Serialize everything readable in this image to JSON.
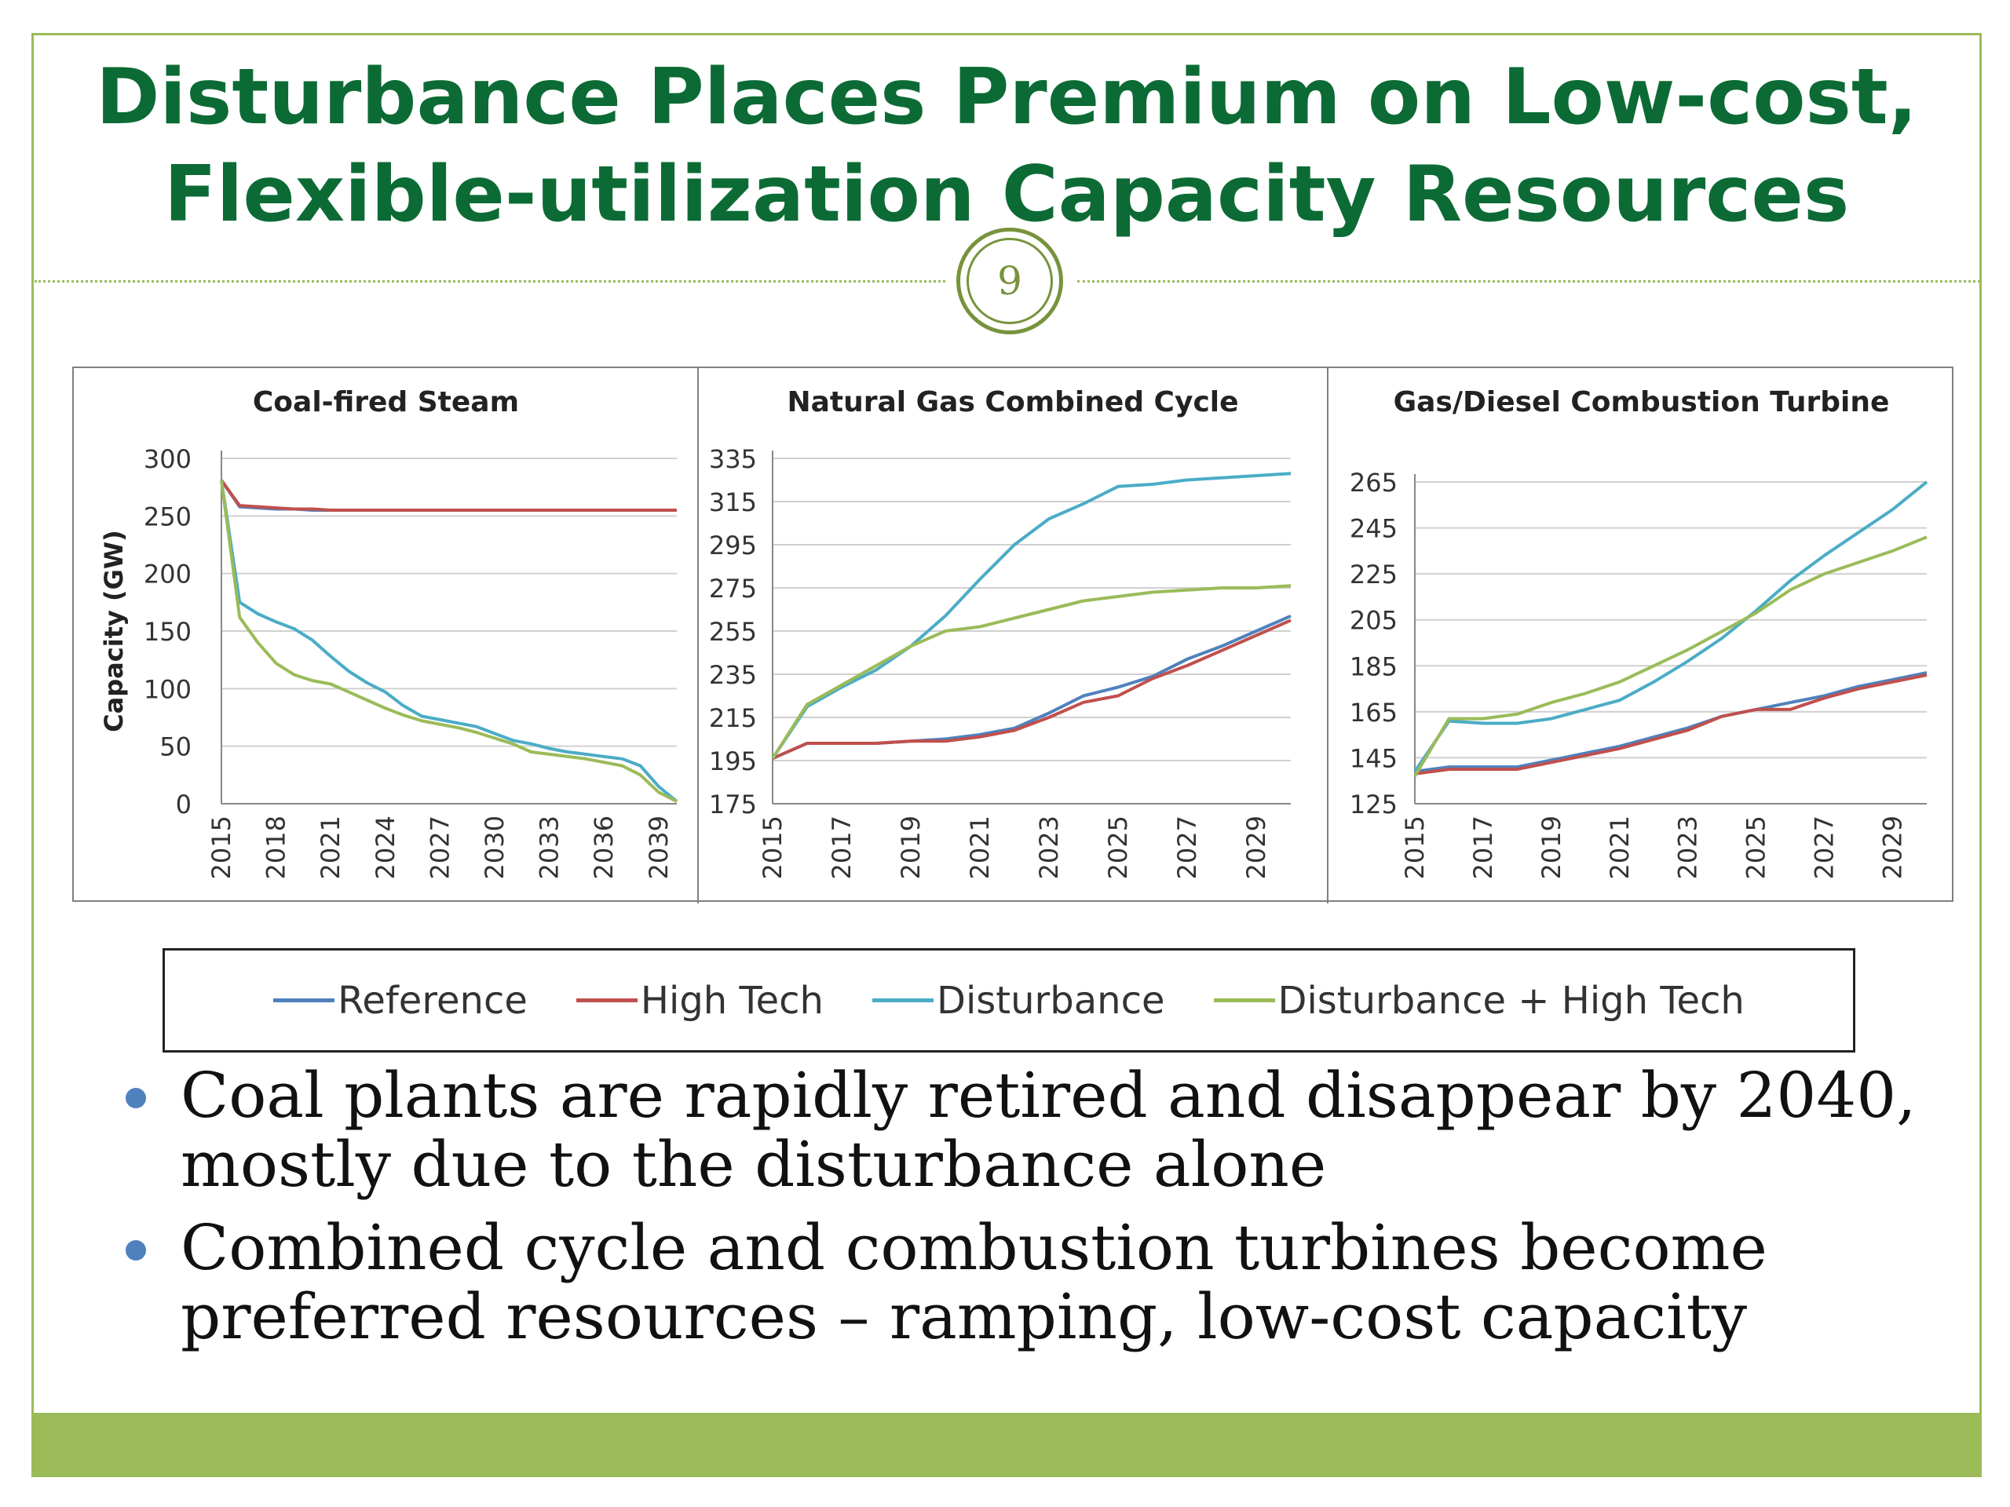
{
  "slide": {
    "title_line1": "Disturbance Places Premium on Low-cost,",
    "title_line2": "Flexible-utilization Capacity Resources",
    "page_number": "9",
    "colors": {
      "title": "#0c6b35",
      "accent": "#9bbb59",
      "badge": "#77933c",
      "bullet": "#4f81bd"
    }
  },
  "legend": [
    {
      "name": "Reference",
      "color": "#4f81bd"
    },
    {
      "name": "High Tech",
      "color": "#c0504d"
    },
    {
      "name": "Disturbance",
      "color": "#4bacc6"
    },
    {
      "name": "Disturbance + High Tech",
      "color": "#9bbb59"
    }
  ],
  "bullets": [
    "Coal plants are rapidly retired and disappear by 2040, mostly due to the disturbance alone",
    "Combined cycle and combustion turbines become preferred resources – ramping, low-cost capacity"
  ],
  "chart_data": [
    {
      "type": "line",
      "title": "Coal-fired Steam",
      "ylabel": "Capacity (GW)",
      "xlabel": "",
      "ylim": [
        0,
        300
      ],
      "yticks": [
        0,
        50,
        100,
        150,
        200,
        250,
        300
      ],
      "x": [
        2015,
        2016,
        2017,
        2018,
        2019,
        2020,
        2021,
        2022,
        2023,
        2024,
        2025,
        2026,
        2027,
        2028,
        2029,
        2030,
        2031,
        2032,
        2033,
        2034,
        2035,
        2036,
        2037,
        2038,
        2039,
        2040
      ],
      "xtick_labels": [
        "2015",
        "2018",
        "2021",
        "2024",
        "2027",
        "2030",
        "2033",
        "2036",
        "2039"
      ],
      "grid": true,
      "series": [
        {
          "name": "Reference",
          "values": [
            281,
            258,
            257,
            256,
            256,
            255,
            255,
            255,
            255,
            255,
            255,
            255,
            255,
            255,
            255,
            255,
            255,
            255,
            255,
            255,
            255,
            255,
            255,
            255,
            255,
            255
          ]
        },
        {
          "name": "High Tech",
          "values": [
            281,
            259,
            258,
            257,
            256,
            256,
            255,
            255,
            255,
            255,
            255,
            255,
            255,
            255,
            255,
            255,
            255,
            255,
            255,
            255,
            255,
            255,
            255,
            255,
            255,
            255
          ]
        },
        {
          "name": "Disturbance",
          "values": [
            281,
            175,
            165,
            158,
            152,
            142,
            128,
            115,
            105,
            97,
            85,
            76,
            73,
            70,
            67,
            61,
            55,
            52,
            48,
            45,
            43,
            41,
            39,
            33,
            15,
            2
          ]
        },
        {
          "name": "Disturbance + High Tech",
          "values": [
            281,
            162,
            140,
            122,
            112,
            107,
            104,
            97,
            90,
            83,
            77,
            72,
            69,
            66,
            62,
            57,
            52,
            45,
            43,
            41,
            39,
            36,
            33,
            25,
            10,
            2
          ]
        }
      ]
    },
    {
      "type": "line",
      "title": "Natural Gas Combined Cycle",
      "xlabel": "",
      "ylabel": "",
      "ylim": [
        175,
        335
      ],
      "yticks": [
        175,
        195,
        215,
        235,
        255,
        275,
        295,
        315,
        335
      ],
      "x": [
        2015,
        2016,
        2017,
        2018,
        2019,
        2020,
        2021,
        2022,
        2023,
        2024,
        2025,
        2026,
        2027,
        2028,
        2029,
        2030
      ],
      "xtick_labels": [
        "2015",
        "2017",
        "2019",
        "2021",
        "2023",
        "2025",
        "2027",
        "2029"
      ],
      "grid": true,
      "series": [
        {
          "name": "Reference",
          "values": [
            196,
            203,
            203,
            203,
            204,
            205,
            207,
            210,
            217,
            225,
            229,
            234,
            242,
            248,
            255,
            262
          ]
        },
        {
          "name": "High Tech",
          "values": [
            196,
            203,
            203,
            203,
            204,
            204,
            206,
            209,
            215,
            222,
            225,
            233,
            239,
            246,
            253,
            260
          ]
        },
        {
          "name": "Disturbance",
          "values": [
            196,
            220,
            229,
            237,
            248,
            262,
            279,
            295,
            307,
            314,
            322,
            323,
            325,
            326,
            327,
            328
          ]
        },
        {
          "name": "Disturbance + High Tech",
          "values": [
            196,
            221,
            230,
            239,
            248,
            255,
            257,
            261,
            265,
            269,
            271,
            273,
            274,
            275,
            275,
            276
          ]
        }
      ]
    },
    {
      "type": "line",
      "title": "Gas/Diesel Combustion Turbine",
      "xlabel": "",
      "ylabel": "",
      "ylim": [
        125,
        265
      ],
      "yticks": [
        125,
        145,
        165,
        185,
        205,
        225,
        245,
        265
      ],
      "x": [
        2015,
        2016,
        2017,
        2018,
        2019,
        2020,
        2021,
        2022,
        2023,
        2024,
        2025,
        2026,
        2027,
        2028,
        2029,
        2030
      ],
      "xtick_labels": [
        "2015",
        "2017",
        "2019",
        "2021",
        "2023",
        "2025",
        "2027",
        "2029"
      ],
      "grid": true,
      "series": [
        {
          "name": "Reference",
          "values": [
            139,
            141,
            141,
            141,
            144,
            147,
            150,
            154,
            158,
            163,
            166,
            169,
            172,
            176,
            179,
            182
          ]
        },
        {
          "name": "High Tech",
          "values": [
            138,
            140,
            140,
            140,
            143,
            146,
            149,
            153,
            157,
            163,
            166,
            166,
            171,
            175,
            178,
            181
          ]
        },
        {
          "name": "Disturbance",
          "values": [
            139,
            161,
            160,
            160,
            162,
            166,
            170,
            178,
            187,
            197,
            209,
            222,
            233,
            243,
            253,
            265
          ]
        },
        {
          "name": "Disturbance + High Tech",
          "values": [
            137,
            162,
            162,
            164,
            169,
            173,
            178,
            185,
            192,
            200,
            208,
            218,
            225,
            230,
            235,
            241
          ]
        }
      ]
    }
  ]
}
